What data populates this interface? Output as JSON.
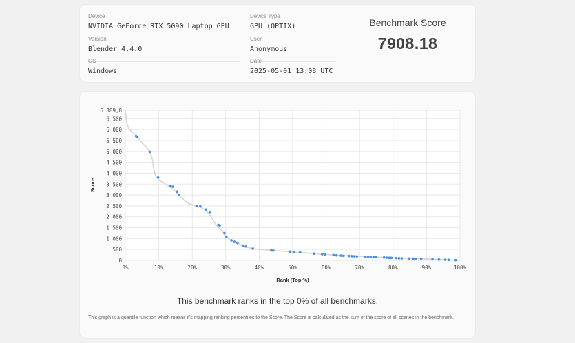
{
  "info": {
    "device_label": "Device",
    "device_value": "NVIDIA GeForce RTX 5090 Laptop GPU",
    "device_type_label": "Device Type",
    "device_type_value": "GPU (OPTIX)",
    "version_label": "Version",
    "version_value": "Blender 4.4.0",
    "user_label": "User",
    "user_value": "Anonymous",
    "os_label": "OS",
    "os_value": "Windows",
    "date_label": "Date",
    "date_value": "2025-05-01 13:08 UTC"
  },
  "score": {
    "title": "Benchmark Score",
    "value": "7908.18"
  },
  "rank_text": "This benchmark ranks in the top 0% of all benchmarks.",
  "note": "This graph is a quantile function which means it's mapping ranking percentiles to the Score. The Score is calculated as the sum of the score of all scenes in the benchmark.",
  "colors": {
    "line": "#d6d6d6",
    "points": "#4a90e2",
    "grid": "#e8e8e8"
  },
  "chart_data": {
    "type": "line",
    "xlabel": "Rank (Top %)",
    "ylabel": "Score",
    "xlim": [
      0,
      100
    ],
    "ylim": [
      0,
      6889.8
    ],
    "x_ticks": [
      "0%",
      "10%",
      "20%",
      "30%",
      "40%",
      "50%",
      "60%",
      "70%",
      "80%",
      "90%",
      "100%"
    ],
    "y_ticks": [
      "0",
      "500",
      "1 000",
      "1 500",
      "2 000",
      "2 500",
      "3 000",
      "3 500",
      "4 000",
      "4 500",
      "5 000",
      "5 500",
      "6 000",
      "6 500",
      "6 889,8"
    ],
    "y_tick_values": [
      0,
      500,
      1000,
      1500,
      2000,
      2500,
      3000,
      3500,
      4000,
      4500,
      5000,
      5500,
      6000,
      6500,
      6889.8
    ],
    "grid": true,
    "curve": [
      [
        0,
        6889.8
      ],
      [
        0.5,
        6300
      ],
      [
        1,
        6050
      ],
      [
        2,
        5900
      ],
      [
        3,
        5780
      ],
      [
        4,
        5600
      ],
      [
        5,
        5380
      ],
      [
        6,
        5250
      ],
      [
        7,
        5050
      ],
      [
        8,
        4700
      ],
      [
        8.5,
        4200
      ],
      [
        9,
        3900
      ],
      [
        10,
        3680
      ],
      [
        11,
        3600
      ],
      [
        12,
        3500
      ],
      [
        13,
        3400
      ],
      [
        14,
        3300
      ],
      [
        15,
        3180
      ],
      [
        16,
        2980
      ],
      [
        17,
        2850
      ],
      [
        18,
        2700
      ],
      [
        19,
        2600
      ],
      [
        20,
        2550
      ],
      [
        21,
        2500
      ],
      [
        22,
        2450
      ],
      [
        23,
        2400
      ],
      [
        24,
        2300
      ],
      [
        25,
        2150
      ],
      [
        26,
        1900
      ],
      [
        27,
        1650
      ],
      [
        28,
        1500
      ],
      [
        29,
        1320
      ],
      [
        30,
        1150
      ],
      [
        31,
        970
      ],
      [
        32,
        880
      ],
      [
        33,
        820
      ],
      [
        34,
        760
      ],
      [
        35,
        680
      ],
      [
        36,
        620
      ],
      [
        38,
        540
      ],
      [
        40,
        500
      ],
      [
        43,
        470
      ],
      [
        46,
        430
      ],
      [
        50,
        390
      ],
      [
        55,
        330
      ],
      [
        60,
        270
      ],
      [
        65,
        220
      ],
      [
        70,
        185
      ],
      [
        75,
        150
      ],
      [
        80,
        120
      ],
      [
        85,
        90
      ],
      [
        90,
        65
      ],
      [
        95,
        35
      ],
      [
        98,
        20
      ],
      [
        100,
        0
      ]
    ],
    "points": [
      [
        3.2,
        5700
      ],
      [
        3.6,
        5650
      ],
      [
        7.3,
        4980
      ],
      [
        9.8,
        3800
      ],
      [
        13.5,
        3420
      ],
      [
        14.2,
        3380
      ],
      [
        15.4,
        3150
      ],
      [
        16.1,
        3000
      ],
      [
        21.3,
        2500
      ],
      [
        22.4,
        2480
      ],
      [
        24.1,
        2330
      ],
      [
        25.3,
        2220
      ],
      [
        27.8,
        1630
      ],
      [
        28.2,
        1600
      ],
      [
        29.6,
        1250
      ],
      [
        30.2,
        1080
      ],
      [
        31.7,
        920
      ],
      [
        32.6,
        850
      ],
      [
        33.5,
        800
      ],
      [
        35.1,
        680
      ],
      [
        36.0,
        640
      ],
      [
        38.1,
        540
      ],
      [
        43.6,
        460
      ],
      [
        44.2,
        450
      ],
      [
        49.2,
        400
      ],
      [
        50.3,
        390
      ],
      [
        52.2,
        370
      ],
      [
        56.4,
        310
      ],
      [
        58.8,
        285
      ],
      [
        59.6,
        275
      ],
      [
        62.2,
        245
      ],
      [
        63.1,
        230
      ],
      [
        64.4,
        220
      ],
      [
        65.2,
        210
      ],
      [
        66.8,
        200
      ],
      [
        67.6,
        195
      ],
      [
        68.4,
        190
      ],
      [
        69.2,
        185
      ],
      [
        71.6,
        170
      ],
      [
        72.5,
        165
      ],
      [
        73.3,
        160
      ],
      [
        74.2,
        155
      ],
      [
        75.0,
        150
      ],
      [
        77.3,
        135
      ],
      [
        78.1,
        125
      ],
      [
        78.9,
        120
      ],
      [
        79.5,
        115
      ],
      [
        81.0,
        105
      ],
      [
        81.8,
        100
      ],
      [
        82.6,
        95
      ],
      [
        84.8,
        85
      ],
      [
        86.1,
        80
      ],
      [
        86.9,
        75
      ],
      [
        88.4,
        65
      ],
      [
        91.8,
        48
      ],
      [
        93.7,
        40
      ],
      [
        95.6,
        30
      ],
      [
        96.6,
        25
      ],
      [
        98.7,
        12
      ]
    ]
  }
}
